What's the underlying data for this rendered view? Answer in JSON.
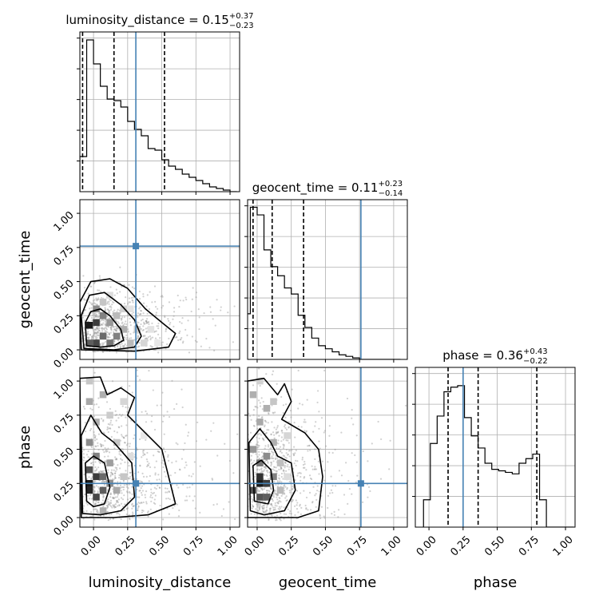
{
  "chart_data": {
    "type": "corner",
    "parameters": [
      "luminosity_distance",
      "geocent_time",
      "phase"
    ],
    "injection": {
      "luminosity_distance": 0.31,
      "geocent_time": 0.76,
      "phase": 0.25
    },
    "axis_ranges": {
      "luminosity_distance": [
        -0.1,
        1.07
      ],
      "geocent_time": [
        -0.07,
        1.1
      ],
      "phase": [
        -0.07,
        1.1
      ],
      "phase_diag": [
        -0.1,
        1.07
      ]
    },
    "tick_values": [
      0.0,
      0.25,
      0.5,
      0.75,
      1.0
    ],
    "tick_labels": [
      "0.00",
      "0.25",
      "0.50",
      "0.75",
      "1.00"
    ],
    "grid": true,
    "diagonals": [
      {
        "param": "luminosity_distance",
        "summary": {
          "median": 0.15,
          "plus": "+0.37",
          "minus": "−0.23"
        },
        "title_prefix": "luminosity_distance = 0.15",
        "title_plus": "+0.37",
        "title_minus": "−0.23",
        "quantiles": [
          -0.08,
          0.15,
          0.52
        ],
        "bin_start": -0.1,
        "bin_width": 0.05,
        "hist_ymax": 1.0,
        "hist": [
          0.22,
          0.95,
          0.8,
          0.66,
          0.58,
          0.57,
          0.53,
          0.44,
          0.39,
          0.35,
          0.27,
          0.26,
          0.2,
          0.16,
          0.14,
          0.11,
          0.09,
          0.07,
          0.05,
          0.03,
          0.02,
          0.01,
          0.0
        ]
      },
      {
        "param": "geocent_time",
        "summary": {
          "median": 0.11,
          "plus": "+0.23",
          "minus": "−0.14"
        },
        "title_prefix": "geocent_time = 0.11",
        "title_plus": "+0.23",
        "title_minus": "−0.14",
        "quantiles": [
          -0.03,
          0.11,
          0.34
        ],
        "bin_start": -0.1,
        "bin_width": 0.05,
        "hist_ymax": 1.05,
        "hist": [
          0.3,
          1.0,
          0.95,
          0.72,
          0.61,
          0.55,
          0.47,
          0.43,
          0.29,
          0.21,
          0.14,
          0.09,
          0.07,
          0.05,
          0.03,
          0.02,
          0.01,
          0.0,
          0.0,
          0.0,
          0.0,
          0.0,
          0.0
        ]
      },
      {
        "param": "phase",
        "summary": {
          "median": 0.36,
          "plus": "+0.43",
          "minus": "−0.22"
        },
        "title_prefix": "phase = 0.36",
        "title_plus": "+0.43",
        "title_minus": "−0.22",
        "quantiles": [
          0.14,
          0.36,
          0.79
        ],
        "bin_start": -0.04,
        "bin_width": 0.05,
        "hist_ymax": 1.05,
        "hist": [
          0.18,
          0.55,
          0.73,
          0.89,
          0.92,
          0.93,
          0.72,
          0.6,
          0.52,
          0.42,
          0.38,
          0.37,
          0.36,
          0.35,
          0.42,
          0.45,
          0.48,
          0.18,
          0.0,
          0.0,
          0.0,
          0.0
        ]
      }
    ],
    "density_panels": [
      {
        "x_param": "luminosity_distance",
        "y_param": "geocent_time",
        "x_peak": -0.02,
        "y_peak": 0.15,
        "x_spread": 0.2,
        "y_spread": 0.16,
        "x_tail": 0.3,
        "y_tail": 0.2,
        "cells": [
          [
            -0.03,
            0.18,
            1.0
          ],
          [
            0.02,
            0.05,
            0.8
          ],
          [
            0.02,
            0.2,
            0.85
          ],
          [
            -0.03,
            0.05,
            0.7
          ],
          [
            0.07,
            0.1,
            0.65
          ],
          [
            0.12,
            0.05,
            0.6
          ],
          [
            0.17,
            0.1,
            0.55
          ],
          [
            0.07,
            0.25,
            0.55
          ],
          [
            0.02,
            0.3,
            0.5
          ],
          [
            0.12,
            0.2,
            0.45
          ],
          [
            0.22,
            0.15,
            0.35
          ],
          [
            0.27,
            0.05,
            0.3
          ],
          [
            0.17,
            0.25,
            0.3
          ],
          [
            0.32,
            0.15,
            0.22
          ],
          [
            0.37,
            0.05,
            0.18
          ],
          [
            0.07,
            0.35,
            0.25
          ],
          [
            0.22,
            0.3,
            0.2
          ],
          [
            0.42,
            0.15,
            0.12
          ],
          [
            0.47,
            0.05,
            0.1
          ],
          [
            0.12,
            0.4,
            0.15
          ],
          [
            0.27,
            0.3,
            0.12
          ]
        ],
        "contours": [
          [
            [
              -0.05,
              0.03
            ],
            [
              -0.06,
              0.2
            ],
            [
              -0.02,
              0.28
            ],
            [
              0.05,
              0.3
            ],
            [
              0.12,
              0.25
            ],
            [
              0.2,
              0.15
            ],
            [
              0.22,
              0.07
            ],
            [
              0.15,
              0.03
            ],
            [
              0.05,
              0.02
            ]
          ],
          [
            [
              -0.07,
              0.01
            ],
            [
              -0.09,
              0.25
            ],
            [
              -0.03,
              0.4
            ],
            [
              0.08,
              0.42
            ],
            [
              0.2,
              0.33
            ],
            [
              0.3,
              0.22
            ],
            [
              0.35,
              0.1
            ],
            [
              0.3,
              0.02
            ],
            [
              0.15,
              0.0
            ]
          ],
          [
            [
              -0.09,
              0.0
            ],
            [
              -0.1,
              0.35
            ],
            [
              -0.02,
              0.5
            ],
            [
              0.12,
              0.52
            ],
            [
              0.25,
              0.45
            ],
            [
              0.38,
              0.3
            ],
            [
              0.5,
              0.2
            ],
            [
              0.6,
              0.12
            ],
            [
              0.55,
              0.02
            ],
            [
              0.3,
              -0.01
            ]
          ]
        ]
      },
      {
        "x_param": "luminosity_distance",
        "y_param": "phase",
        "x_peak": -0.02,
        "y_peak": 0.25,
        "x_spread": 0.22,
        "y_spread": 0.35,
        "x_tail": 0.3,
        "y_tail": 0.3,
        "cells": [
          [
            -0.03,
            0.25,
            1.0
          ],
          [
            -0.03,
            0.2,
            0.95
          ],
          [
            0.02,
            0.3,
            0.85
          ],
          [
            0.02,
            0.15,
            0.8
          ],
          [
            -0.03,
            0.35,
            0.75
          ],
          [
            0.07,
            0.2,
            0.7
          ],
          [
            0.07,
            0.3,
            0.65
          ],
          [
            0.02,
            0.45,
            0.55
          ],
          [
            -0.03,
            0.55,
            0.5
          ],
          [
            0.12,
            0.25,
            0.5
          ],
          [
            0.12,
            0.4,
            0.42
          ],
          [
            0.02,
            0.7,
            0.35
          ],
          [
            -0.03,
            0.85,
            0.38
          ],
          [
            0.07,
            0.9,
            0.35
          ],
          [
            0.17,
            0.2,
            0.38
          ],
          [
            0.17,
            0.55,
            0.25
          ],
          [
            0.22,
            0.3,
            0.25
          ],
          [
            0.12,
            0.75,
            0.22
          ],
          [
            0.27,
            0.45,
            0.15
          ],
          [
            0.22,
            0.85,
            0.18
          ],
          [
            0.32,
            0.25,
            0.12
          ],
          [
            0.37,
            0.6,
            0.1
          ],
          [
            0.07,
            0.05,
            0.35
          ],
          [
            -0.03,
            1.0,
            0.25
          ]
        ],
        "contours": [
          [
            [
              -0.05,
              0.12
            ],
            [
              -0.06,
              0.4
            ],
            [
              0.0,
              0.45
            ],
            [
              0.08,
              0.4
            ],
            [
              0.12,
              0.22
            ],
            [
              0.08,
              0.1
            ],
            [
              0.0,
              0.08
            ]
          ],
          [
            [
              -0.08,
              0.03
            ],
            [
              -0.09,
              0.6
            ],
            [
              -0.02,
              0.75
            ],
            [
              0.06,
              0.62
            ],
            [
              0.15,
              0.55
            ],
            [
              0.28,
              0.4
            ],
            [
              0.3,
              0.15
            ],
            [
              0.2,
              0.05
            ],
            [
              0.05,
              0.02
            ]
          ],
          [
            [
              -0.09,
              0.0
            ],
            [
              -0.1,
              1.02
            ],
            [
              0.05,
              1.03
            ],
            [
              0.1,
              0.9
            ],
            [
              0.2,
              0.95
            ],
            [
              0.3,
              0.88
            ],
            [
              0.25,
              0.75
            ],
            [
              0.35,
              0.65
            ],
            [
              0.5,
              0.5
            ],
            [
              0.55,
              0.3
            ],
            [
              0.6,
              0.1
            ],
            [
              0.4,
              0.02
            ],
            [
              0.15,
              0.0
            ]
          ]
        ]
      },
      {
        "x_param": "geocent_time",
        "y_param": "phase",
        "x_peak": 0.0,
        "y_peak": 0.27,
        "x_spread": 0.15,
        "y_spread": 0.35,
        "x_tail": 0.25,
        "y_tail": 0.3,
        "cells": [
          [
            0.02,
            0.25,
            1.0
          ],
          [
            0.02,
            0.3,
            0.9
          ],
          [
            0.07,
            0.25,
            0.85
          ],
          [
            -0.03,
            0.2,
            0.75
          ],
          [
            0.07,
            0.15,
            0.7
          ],
          [
            0.02,
            0.15,
            0.75
          ],
          [
            0.12,
            0.3,
            0.55
          ],
          [
            0.02,
            0.4,
            0.6
          ],
          [
            0.07,
            0.45,
            0.5
          ],
          [
            -0.03,
            0.5,
            0.45
          ],
          [
            0.12,
            0.55,
            0.35
          ],
          [
            0.02,
            0.7,
            0.38
          ],
          [
            0.07,
            0.8,
            0.35
          ],
          [
            -0.03,
            0.9,
            0.35
          ],
          [
            0.12,
            0.85,
            0.25
          ],
          [
            0.17,
            0.4,
            0.28
          ],
          [
            0.17,
            0.2,
            0.3
          ],
          [
            0.22,
            0.6,
            0.18
          ],
          [
            0.02,
            1.0,
            0.2
          ],
          [
            0.22,
            0.3,
            0.15
          ]
        ],
        "contours": [
          [
            [
              -0.02,
              0.12
            ],
            [
              -0.03,
              0.38
            ],
            [
              0.03,
              0.42
            ],
            [
              0.1,
              0.35
            ],
            [
              0.12,
              0.2
            ],
            [
              0.08,
              0.1
            ]
          ],
          [
            [
              -0.05,
              0.05
            ],
            [
              -0.06,
              0.55
            ],
            [
              0.02,
              0.65
            ],
            [
              0.1,
              0.55
            ],
            [
              0.15,
              0.45
            ],
            [
              0.25,
              0.4
            ],
            [
              0.28,
              0.2
            ],
            [
              0.2,
              0.05
            ],
            [
              0.05,
              0.02
            ]
          ],
          [
            [
              -0.07,
              0.0
            ],
            [
              -0.07,
              1.0
            ],
            [
              0.05,
              1.02
            ],
            [
              0.15,
              0.9
            ],
            [
              0.2,
              0.98
            ],
            [
              0.25,
              0.85
            ],
            [
              0.18,
              0.72
            ],
            [
              0.35,
              0.62
            ],
            [
              0.45,
              0.5
            ],
            [
              0.48,
              0.3
            ],
            [
              0.45,
              0.05
            ],
            [
              0.3,
              0.0
            ]
          ]
        ]
      }
    ]
  }
}
